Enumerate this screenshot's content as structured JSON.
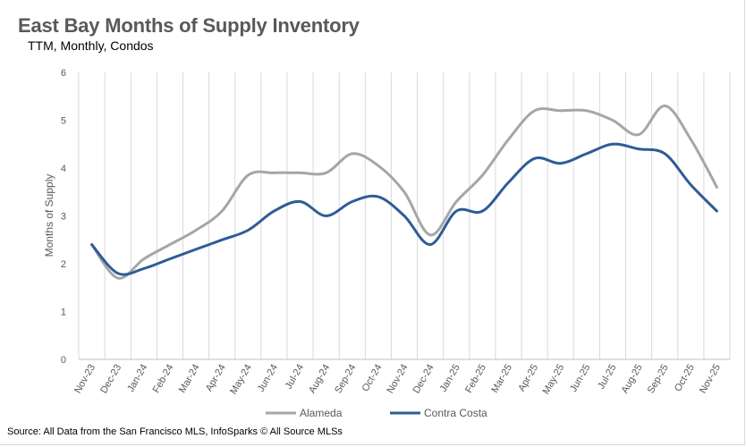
{
  "title": "East Bay Months of Supply Inventory",
  "subtitle": "TTM, Monthly, Condos",
  "source": "Source: All Data from the San Francisco MLS, InfoSparks © All Source MLSs",
  "chart_data": {
    "type": "line",
    "title": "East Bay Months of Supply Inventory",
    "subtitle": "TTM, Monthly, Condos",
    "xlabel": "",
    "ylabel": "Months of Supply",
    "ylim": [
      0,
      6
    ],
    "yticks": [
      0,
      1,
      2,
      3,
      4,
      5,
      6
    ],
    "grid": "vertical",
    "legend": "bottom",
    "categories": [
      "Nov-23",
      "Dec-23",
      "Jan-24",
      "Feb-24",
      "Mar-24",
      "Apr-24",
      "May-24",
      "Jun-24",
      "Jul-24",
      "Aug-24",
      "Sep-24",
      "Oct-24",
      "Nov-24",
      "Dec-24",
      "Jan-25",
      "Feb-25",
      "Mar-25",
      "Apr-25",
      "May-25",
      "Jun-25",
      "Jul-25",
      "Aug-25",
      "Sep-25",
      "Oct-25",
      "Nov-25"
    ],
    "series": [
      {
        "name": "Alameda",
        "color": "#a6a6a6",
        "values": [
          2.4,
          1.7,
          2.1,
          2.4,
          2.7,
          3.1,
          3.85,
          3.9,
          3.9,
          3.9,
          4.3,
          4.05,
          3.5,
          2.6,
          3.3,
          3.85,
          4.6,
          5.2,
          5.2,
          5.2,
          5.0,
          4.7,
          5.3,
          4.6,
          3.6
        ]
      },
      {
        "name": "Contra Costa",
        "color": "#2e5c96",
        "values": [
          2.4,
          1.8,
          1.9,
          2.1,
          2.3,
          2.5,
          2.7,
          3.1,
          3.3,
          3.0,
          3.3,
          3.4,
          3.0,
          2.4,
          3.1,
          3.1,
          3.7,
          4.2,
          4.1,
          4.3,
          4.5,
          4.4,
          4.3,
          3.65,
          3.1
        ]
      }
    ]
  }
}
